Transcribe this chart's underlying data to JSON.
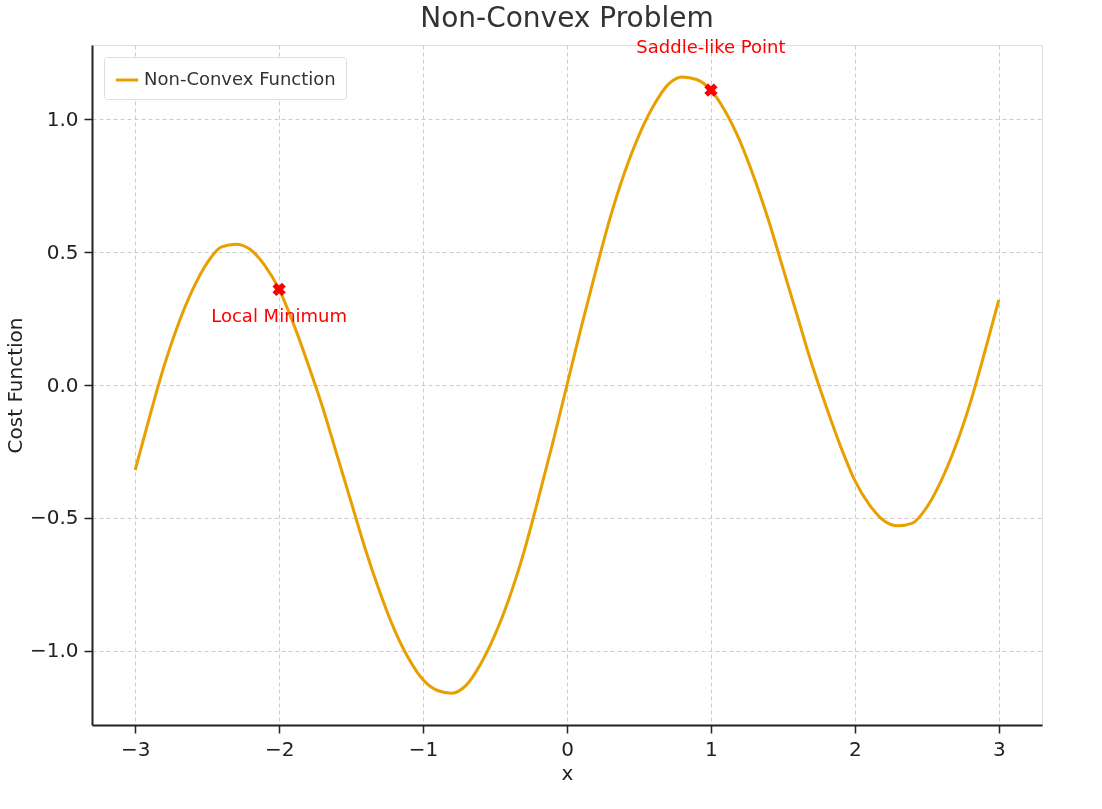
{
  "chart_data": {
    "type": "line",
    "title": "Non-Convex Problem",
    "xlabel": "x",
    "ylabel": "Cost Function",
    "x": [
      -3.0,
      -2.9,
      -2.8,
      -2.7,
      -2.6,
      -2.5,
      -2.4,
      -2.3,
      -2.2,
      -2.1,
      -2.0,
      -1.9,
      -1.8,
      -1.7,
      -1.6,
      -1.5,
      -1.4,
      -1.3,
      -1.2,
      -1.1,
      -1.0,
      -0.9,
      -0.8,
      -0.7,
      -0.6,
      -0.5,
      -0.4,
      -0.3,
      -0.2,
      -0.1,
      0.0,
      0.1,
      0.2,
      0.3,
      0.4,
      0.5,
      0.6,
      0.7,
      0.8,
      0.9,
      1.0,
      1.1,
      1.2,
      1.3,
      1.4,
      1.5,
      1.6,
      1.7,
      1.8,
      1.9,
      2.0,
      2.1,
      2.2,
      2.3,
      2.4,
      2.5,
      2.6,
      2.7,
      2.8,
      2.9,
      3.0
    ],
    "series": [
      {
        "name": "Non-Convex Function",
        "color": "#e8a000",
        "line_style": "solid",
        "values": [
          -0.32,
          -0.12,
          0.07,
          0.23,
          0.36,
          0.46,
          0.52,
          0.53,
          0.51,
          0.45,
          0.36,
          0.23,
          0.08,
          -0.08,
          -0.26,
          -0.44,
          -0.62,
          -0.78,
          -0.92,
          -1.03,
          -1.11,
          -1.15,
          -1.16,
          -1.13,
          -1.05,
          -0.94,
          -0.8,
          -0.63,
          -0.43,
          -0.22,
          0.0,
          0.22,
          0.43,
          0.63,
          0.8,
          0.94,
          1.05,
          1.13,
          1.16,
          1.15,
          1.11,
          1.03,
          0.92,
          0.78,
          0.62,
          0.44,
          0.26,
          0.08,
          -0.08,
          -0.23,
          -0.36,
          -0.45,
          -0.51,
          -0.53,
          -0.52,
          -0.46,
          -0.36,
          -0.23,
          -0.07,
          0.12,
          0.32
        ]
      },
      {
        "color": "#ff0000",
        "type": "scatter",
        "marker": "cross",
        "x": [
          -2,
          1
        ],
        "values": [
          0.36,
          1.11
        ]
      }
    ],
    "annotations": [
      {
        "text": "Local Minimum",
        "x": -2,
        "y": 0.36
      },
      {
        "text": "Saddle-like Point",
        "x": 1,
        "y": 1.11
      }
    ],
    "xlim": [
      -3.3,
      3.3
    ],
    "ylim": [
      -1.28,
      1.28
    ],
    "xticks": [
      {
        "value": -3,
        "label": "−3"
      },
      {
        "value": -2,
        "label": "−2"
      },
      {
        "value": -1,
        "label": "−1"
      },
      0,
      1,
      2,
      3
    ],
    "yticks": [
      {
        "value": -1,
        "label": "−1.0"
      },
      {
        "value": -0.5,
        "label": "−0.5"
      },
      {
        "value": 0,
        "label": "0.0"
      },
      {
        "value": 0.5,
        "label": "0.5"
      },
      {
        "value": 1,
        "label": "1.0"
      }
    ],
    "grid": true,
    "legend": "top left"
  }
}
